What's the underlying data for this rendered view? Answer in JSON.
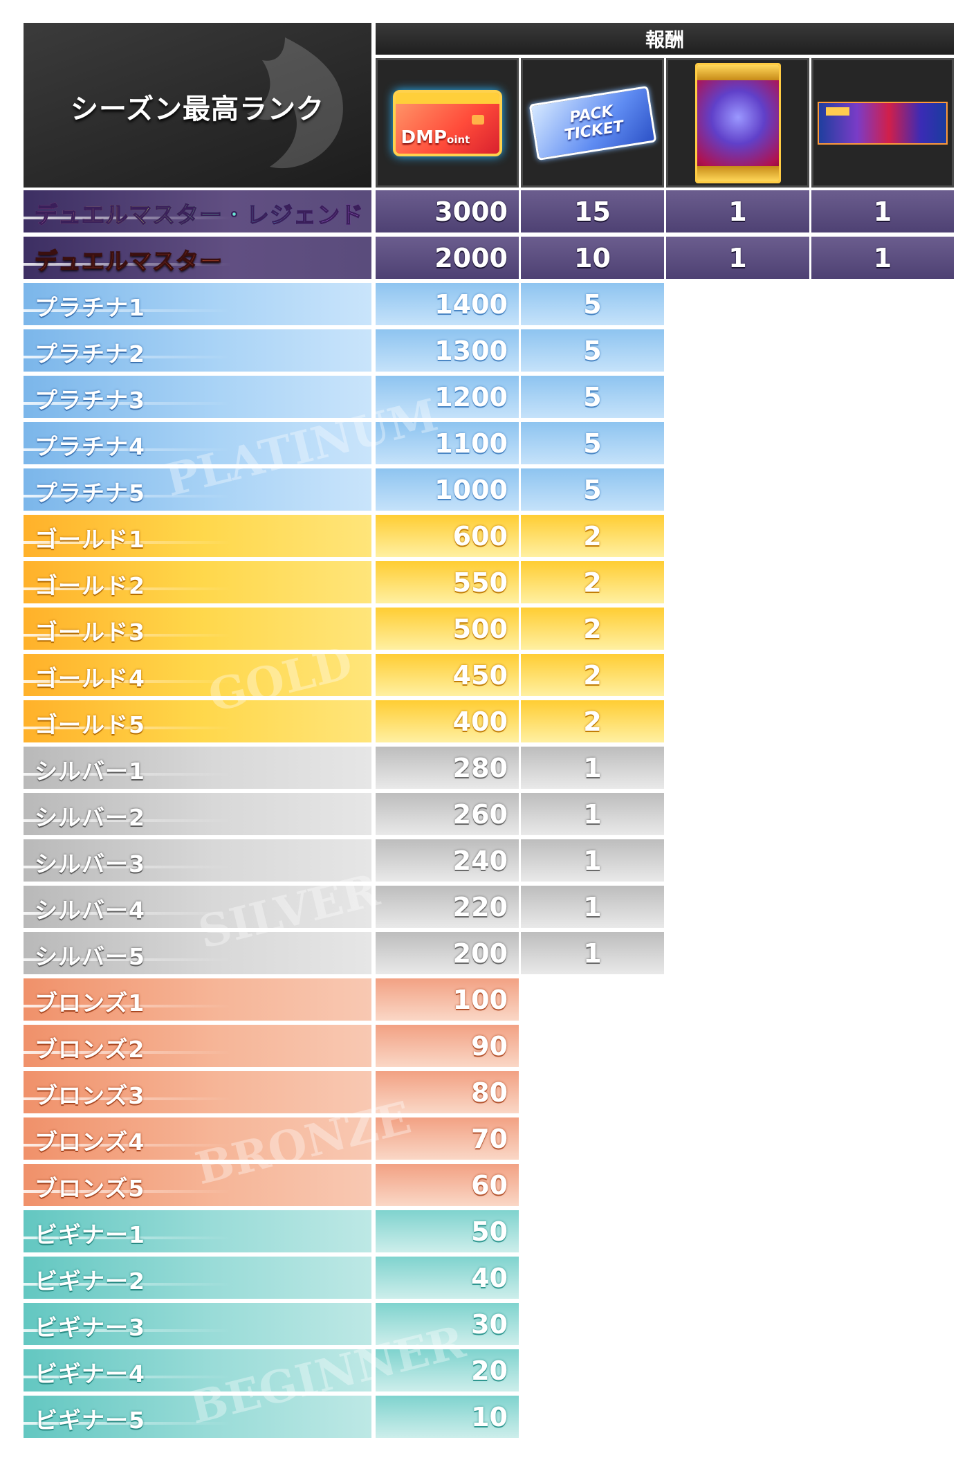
{
  "header": {
    "rank_column_title": "シーズン最高ランク",
    "reward_title": "報酬",
    "reward_icons": [
      {
        "icon": "dmpoint-card-icon",
        "text_main": "DMP",
        "text_sub": "oint"
      },
      {
        "icon": "pack-ticket-icon",
        "line1": "PACK",
        "line2": "TICKET"
      },
      {
        "icon": "card-sleeve-icon"
      },
      {
        "icon": "playmat-icon"
      }
    ]
  },
  "tiers": {
    "platinum_watermark": "PLATINUM",
    "gold_watermark": "GOLD",
    "silver_watermark": "SILVER",
    "bronze_watermark": "BRONZE",
    "beginner_watermark": "BEGINNER"
  },
  "rows": [
    {
      "rank": "デュエルマスター・レジェンド",
      "tier": "legend",
      "dmp": "3000",
      "tickets": "15",
      "sleeve": "1",
      "playmat": "1"
    },
    {
      "rank": "デュエルマスター",
      "tier": "master",
      "dmp": "2000",
      "tickets": "10",
      "sleeve": "1",
      "playmat": "1"
    },
    {
      "rank": "プラチナ1",
      "tier": "platinum",
      "dmp": "1400",
      "tickets": "5"
    },
    {
      "rank": "プラチナ2",
      "tier": "platinum",
      "dmp": "1300",
      "tickets": "5"
    },
    {
      "rank": "プラチナ3",
      "tier": "platinum",
      "dmp": "1200",
      "tickets": "5"
    },
    {
      "rank": "プラチナ4",
      "tier": "platinum",
      "dmp": "1100",
      "tickets": "5"
    },
    {
      "rank": "プラチナ5",
      "tier": "platinum",
      "dmp": "1000",
      "tickets": "5"
    },
    {
      "rank": "ゴールド1",
      "tier": "gold",
      "dmp": "600",
      "tickets": "2"
    },
    {
      "rank": "ゴールド2",
      "tier": "gold",
      "dmp": "550",
      "tickets": "2"
    },
    {
      "rank": "ゴールド3",
      "tier": "gold",
      "dmp": "500",
      "tickets": "2"
    },
    {
      "rank": "ゴールド4",
      "tier": "gold",
      "dmp": "450",
      "tickets": "2"
    },
    {
      "rank": "ゴールド5",
      "tier": "gold",
      "dmp": "400",
      "tickets": "2"
    },
    {
      "rank": "シルバー1",
      "tier": "silver",
      "dmp": "280",
      "tickets": "1"
    },
    {
      "rank": "シルバー2",
      "tier": "silver",
      "dmp": "260",
      "tickets": "1"
    },
    {
      "rank": "シルバー3",
      "tier": "silver",
      "dmp": "240",
      "tickets": "1"
    },
    {
      "rank": "シルバー4",
      "tier": "silver",
      "dmp": "220",
      "tickets": "1"
    },
    {
      "rank": "シルバー5",
      "tier": "silver",
      "dmp": "200",
      "tickets": "1"
    },
    {
      "rank": "ブロンズ1",
      "tier": "bronze",
      "dmp": "100"
    },
    {
      "rank": "ブロンズ2",
      "tier": "bronze",
      "dmp": "90"
    },
    {
      "rank": "ブロンズ3",
      "tier": "bronze",
      "dmp": "80"
    },
    {
      "rank": "ブロンズ4",
      "tier": "bronze",
      "dmp": "70"
    },
    {
      "rank": "ブロンズ5",
      "tier": "bronze",
      "dmp": "60"
    },
    {
      "rank": "ビギナー1",
      "tier": "beginner",
      "dmp": "50"
    },
    {
      "rank": "ビギナー2",
      "tier": "beginner",
      "dmp": "40"
    },
    {
      "rank": "ビギナー3",
      "tier": "beginner",
      "dmp": "30"
    },
    {
      "rank": "ビギナー4",
      "tier": "beginner",
      "dmp": "20"
    },
    {
      "rank": "ビギナー5",
      "tier": "beginner",
      "dmp": "10"
    }
  ]
}
